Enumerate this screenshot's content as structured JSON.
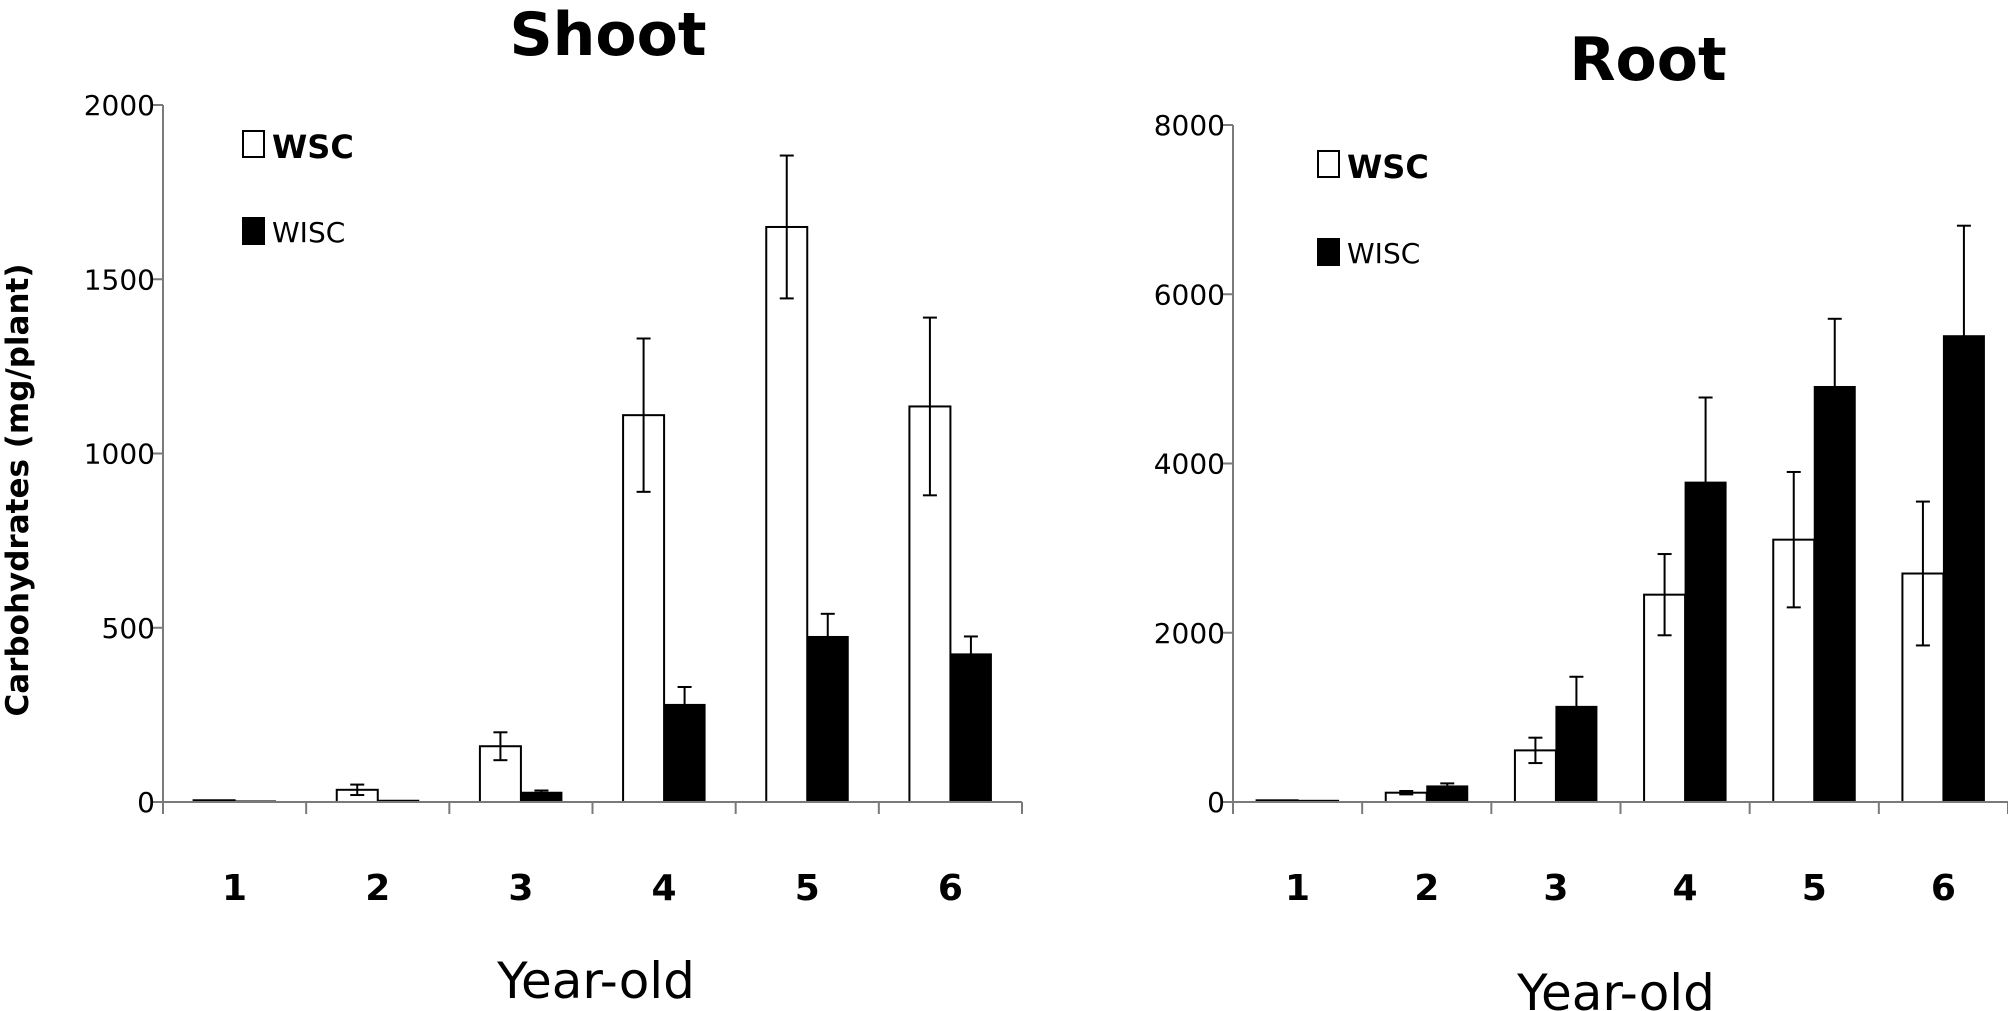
{
  "chart_data": [
    {
      "type": "bar",
      "title": "Shoot",
      "xlabel": "Year-old",
      "ylabel": "Carbohydrates (mg/plant)",
      "categories": [
        "1",
        "2",
        "3",
        "4",
        "5",
        "6"
      ],
      "ylim": [
        0,
        2000
      ],
      "yticks": [
        "0",
        "500",
        "1000",
        "1500",
        "2000"
      ],
      "legend_position": "top-left",
      "grid": false,
      "series": [
        {
          "name": "WSC",
          "color": "#ffffff",
          "values": [
            5,
            35,
            160,
            1110,
            1650,
            1135
          ],
          "errors": [
            0,
            15,
            40,
            220,
            205,
            255
          ]
        },
        {
          "name": "WISC",
          "color": "#000000",
          "values": [
            3,
            5,
            28,
            280,
            475,
            425
          ],
          "errors": [
            0,
            0,
            5,
            50,
            65,
            50
          ]
        }
      ]
    },
    {
      "type": "bar",
      "title": "Root",
      "xlabel": "Year-old",
      "ylabel": "",
      "categories": [
        "1",
        "2",
        "3",
        "4",
        "5",
        "6"
      ],
      "ylim": [
        0,
        8000
      ],
      "yticks": [
        "0",
        "2000",
        "4000",
        "6000",
        "8000"
      ],
      "legend_position": "top-left",
      "grid": false,
      "series": [
        {
          "name": "WSC",
          "color": "#ffffff",
          "values": [
            20,
            110,
            610,
            2450,
            3100,
            2700
          ],
          "errors": [
            0,
            20,
            150,
            480,
            800,
            850
          ]
        },
        {
          "name": "WISC",
          "color": "#000000",
          "values": [
            20,
            190,
            1130,
            3780,
            4910,
            5510
          ],
          "errors": [
            0,
            30,
            350,
            1000,
            800,
            1300
          ]
        }
      ]
    }
  ]
}
